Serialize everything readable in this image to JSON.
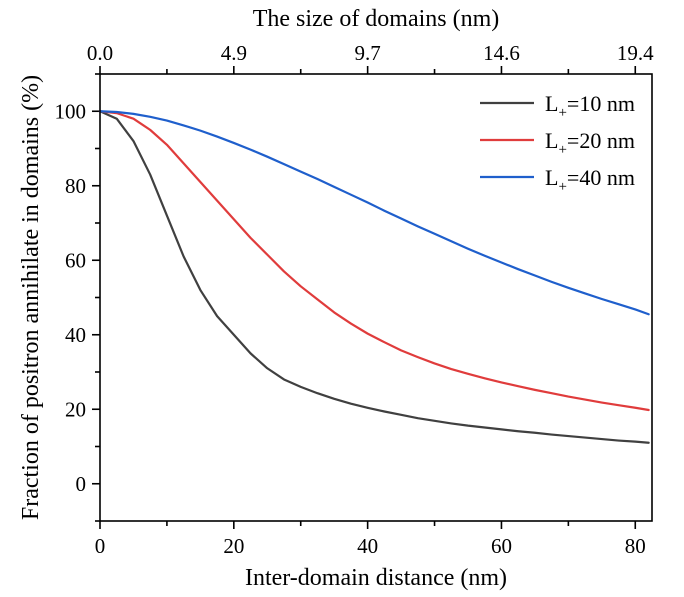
{
  "chart_data": {
    "type": "line",
    "xlabel": "Inter-domain distance (nm)",
    "x2label": "The size of domains (nm)",
    "ylabel": "Fraction of positron annihilate in domains (%)",
    "xlim": [
      0,
      82.5
    ],
    "ylim": [
      -10,
      110
    ],
    "xticks": [
      0,
      20,
      40,
      60,
      80
    ],
    "yticks": [
      0,
      20,
      40,
      60,
      80,
      100
    ],
    "x2ticks": [
      {
        "at": 0,
        "label": "0.0"
      },
      {
        "at": 20,
        "label": "4.9"
      },
      {
        "at": 40,
        "label": "9.7"
      },
      {
        "at": 60,
        "label": "14.6"
      },
      {
        "at": 80,
        "label": "19.4"
      }
    ],
    "grid": false,
    "legend_position": "top-right",
    "x": [
      0,
      2.5,
      5,
      7.5,
      10,
      12.5,
      15,
      17.5,
      20,
      22.5,
      25,
      27.5,
      30,
      32.5,
      35,
      37.5,
      40,
      42.5,
      45,
      47.5,
      50,
      52.5,
      55,
      57.5,
      60,
      62.5,
      65,
      67.5,
      70,
      72.5,
      75,
      77.5,
      80,
      82
    ],
    "series": [
      {
        "name_main": "L",
        "name_sub": "+",
        "name_rest": "=10 nm",
        "color": "#404040",
        "values": [
          100,
          98,
          92,
          83,
          72,
          61,
          52,
          45,
          40,
          35,
          31,
          28,
          26,
          24.3,
          22.8,
          21.5,
          20.4,
          19.4,
          18.5,
          17.6,
          16.9,
          16.2,
          15.6,
          15.1,
          14.6,
          14.1,
          13.7,
          13.2,
          12.8,
          12.4,
          12,
          11.6,
          11.3,
          11
        ]
      },
      {
        "name_main": "L",
        "name_sub": "+",
        "name_rest": "=20 nm",
        "color": "#e03c3c",
        "values": [
          100,
          99.5,
          98,
          95,
          91,
          86,
          81,
          76,
          71,
          66,
          61.5,
          57,
          53,
          49.5,
          46,
          43,
          40.3,
          38,
          35.8,
          34,
          32.3,
          30.8,
          29.5,
          28.3,
          27.2,
          26.2,
          25.2,
          24.3,
          23.4,
          22.6,
          21.8,
          21.1,
          20.4,
          19.8
        ]
      },
      {
        "name_main": "L",
        "name_sub": "+",
        "name_rest": "=40 nm",
        "color": "#1f5fcc",
        "values": [
          100,
          99.8,
          99.3,
          98.5,
          97.5,
          96.2,
          94.8,
          93.2,
          91.5,
          89.7,
          87.8,
          85.8,
          83.8,
          81.8,
          79.7,
          77.6,
          75.5,
          73.3,
          71.2,
          69.1,
          67.1,
          65.1,
          63.1,
          61.2,
          59.4,
          57.6,
          55.9,
          54.2,
          52.6,
          51.1,
          49.6,
          48.2,
          46.8,
          45.5
        ]
      }
    ]
  }
}
